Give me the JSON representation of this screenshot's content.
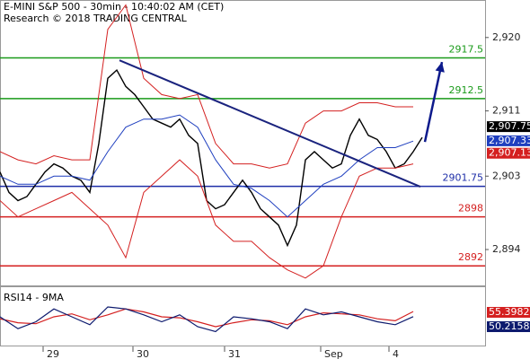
{
  "chart_data": [
    {
      "type": "price",
      "title": "E-MINI S&P 500 - 30min - 10:40:02 AM (CET)",
      "subtitle": "Research © 2018 TRADING CENTRAL",
      "xlim": [
        0,
        108
      ],
      "ylim": [
        2889.6,
        2924.6
      ],
      "xticks": [
        {
          "value": 9.6,
          "label": "29"
        },
        {
          "value": 29.6,
          "label": "30"
        },
        {
          "value": 50,
          "label": "31"
        },
        {
          "value": 71.4,
          "label": "Sep"
        },
        {
          "value": 86.6,
          "label": "4"
        }
      ],
      "yticks": [
        {
          "value": 2920,
          "label": "2,920"
        },
        {
          "value": 2911,
          "label": "2,911"
        },
        {
          "value": 2903,
          "label": "2,903"
        },
        {
          "value": 2894,
          "label": "2,894"
        }
      ],
      "series": [
        {
          "color": "#000000",
          "x": [
            0,
            2,
            4,
            6,
            8,
            10,
            12,
            14,
            16,
            18,
            20,
            22,
            24,
            26,
            28,
            30,
            32,
            34,
            36,
            38,
            40,
            42,
            44,
            46,
            48,
            50,
            52,
            54,
            56,
            58,
            60,
            62,
            64,
            66,
            68,
            70,
            72,
            74,
            76,
            78,
            80,
            82,
            84,
            86,
            88,
            90,
            92,
            94
          ],
          "values": [
            2903.5,
            2901,
            2900,
            2900.5,
            2902,
            2903.5,
            2904.5,
            2904,
            2903,
            2902.5,
            2901,
            2907,
            2915,
            2916,
            2914,
            2913,
            2911.5,
            2910,
            2909.5,
            2909,
            2910,
            2908,
            2907,
            2900,
            2899,
            2899.5,
            2901,
            2902.5,
            2901,
            2899,
            2898,
            2897,
            2894.5,
            2897,
            2905,
            2906,
            2905,
            2904,
            2904.5,
            2908,
            2910,
            2908,
            2907.5,
            2906,
            2904,
            2904.5,
            2906,
            2907.75
          ]
        },
        {
          "color": "#1f3fbf",
          "x": [
            0,
            4,
            8,
            12,
            16,
            20,
            24,
            28,
            32,
            36,
            40,
            44,
            48,
            52,
            56,
            60,
            64,
            68,
            72,
            76,
            80,
            84,
            88,
            92
          ],
          "values": [
            2903,
            2902,
            2902,
            2903,
            2903,
            2902.5,
            2906,
            2909,
            2910,
            2910,
            2910.5,
            2909,
            2905,
            2902,
            2901.5,
            2900,
            2898,
            2900,
            2902,
            2903,
            2905,
            2906.5,
            2906.5,
            2907.3
          ]
        },
        {
          "color": "#d42020",
          "x": [
            0,
            4,
            8,
            12,
            16,
            20,
            24,
            28,
            32,
            36,
            40,
            44,
            48,
            52,
            56,
            60,
            64,
            68,
            72,
            76,
            80,
            84,
            88,
            92
          ],
          "values": [
            2906,
            2905,
            2904.5,
            2905.5,
            2905,
            2905,
            2921,
            2924,
            2915,
            2913,
            2912.5,
            2913,
            2907,
            2904.5,
            2904.5,
            2904,
            2904.5,
            2909.5,
            2911,
            2911,
            2912,
            2912,
            2911.5,
            2911.5
          ]
        },
        {
          "color": "#d42020",
          "x": [
            0,
            4,
            8,
            12,
            16,
            20,
            24,
            28,
            32,
            36,
            40,
            44,
            48,
            52,
            56,
            60,
            64,
            68,
            72,
            76,
            80,
            84,
            88,
            92
          ],
          "values": [
            2900,
            2898,
            2899,
            2900,
            2901,
            2899,
            2897,
            2893,
            2901,
            2903,
            2905,
            2903,
            2897,
            2895,
            2895,
            2893,
            2891.5,
            2890.5,
            2892,
            2898,
            2903,
            2904,
            2904,
            2904.5
          ]
        }
      ],
      "levels": [
        {
          "value": 2917.5,
          "color": "#1a9a1a"
        },
        {
          "value": 2912.5,
          "color": "#1a9a1a"
        },
        {
          "value": 2901.75,
          "color": "#1f2fa8"
        },
        {
          "value": 2898,
          "color": "#d42020"
        },
        {
          "value": 2892,
          "color": "#d42020"
        }
      ],
      "trendline": {
        "color": "#1a237e",
        "x": [
          26.6,
          93.6
        ],
        "values": [
          2917.2,
          2901.7
        ]
      },
      "arrow": {
        "color": "#0d1a8c",
        "x": [
          94.6,
          98.4
        ],
        "values": [
          2907.2,
          2917
        ]
      },
      "price_tags": [
        {
          "value": 2907.75,
          "label": "2,907.75",
          "color": "#000000"
        },
        {
          "value": 2907.33,
          "label": "2,907.33",
          "color": "#1f3fbf"
        },
        {
          "value": 2907.13,
          "label": "2,907.13",
          "color": "#d42020"
        }
      ]
    },
    {
      "type": "rsi",
      "title": "RSI14 - 9MA",
      "xlim": [
        0,
        108
      ],
      "ylim": [
        20,
        80
      ],
      "series": [
        {
          "color": "#d42020",
          "x": [
            0,
            4,
            8,
            12,
            16,
            20,
            24,
            28,
            32,
            36,
            40,
            44,
            48,
            52,
            56,
            60,
            64,
            68,
            72,
            76,
            80,
            84,
            88,
            92
          ],
          "values": [
            48,
            44,
            43,
            50,
            53,
            47,
            52,
            58,
            55,
            50,
            49,
            45,
            40,
            44,
            47,
            46,
            42,
            50,
            54,
            53,
            52,
            48,
            46,
            55.3982
          ]
        },
        {
          "color": "#0d1a6e",
          "x": [
            0,
            4,
            8,
            12,
            16,
            20,
            24,
            28,
            32,
            36,
            40,
            44,
            48,
            52,
            56,
            60,
            64,
            68,
            72,
            76,
            80,
            84,
            88,
            92
          ],
          "values": [
            50,
            38,
            45,
            58,
            50,
            42,
            60,
            58,
            52,
            45,
            52,
            40,
            35,
            50,
            48,
            45,
            38,
            58,
            52,
            55,
            50,
            45,
            42,
            50.2158
          ]
        }
      ]
    }
  ]
}
